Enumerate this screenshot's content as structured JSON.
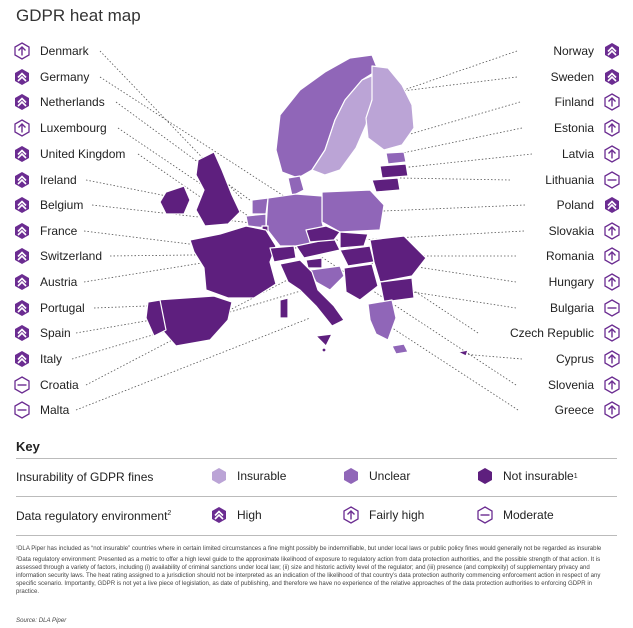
{
  "title": "GDPR heat map",
  "colors": {
    "insurable": "#bba4d6",
    "unclear": "#9066b8",
    "not_insurable": "#5e1f7e",
    "icon": "#6b2c91",
    "leader": "#555555"
  },
  "countries_left": [
    {
      "name": "Denmark",
      "env": "fairly-high"
    },
    {
      "name": "Germany",
      "env": "high"
    },
    {
      "name": "Netherlands",
      "env": "high"
    },
    {
      "name": "Luxembourg",
      "env": "fairly-high"
    },
    {
      "name": "United Kingdom",
      "env": "high"
    },
    {
      "name": "Ireland",
      "env": "high"
    },
    {
      "name": "Belgium",
      "env": "high"
    },
    {
      "name": "France",
      "env": "high"
    },
    {
      "name": "Switzerland",
      "env": "high"
    },
    {
      "name": "Austria",
      "env": "high"
    },
    {
      "name": "Portugal",
      "env": "high"
    },
    {
      "name": "Spain",
      "env": "high"
    },
    {
      "name": "Italy",
      "env": "high"
    },
    {
      "name": "Croatia",
      "env": "moderate"
    },
    {
      "name": "Malta",
      "env": "moderate"
    }
  ],
  "countries_right": [
    {
      "name": "Norway",
      "env": "high"
    },
    {
      "name": "Sweden",
      "env": "high"
    },
    {
      "name": "Finland",
      "env": "fairly-high"
    },
    {
      "name": "Estonia",
      "env": "fairly-high"
    },
    {
      "name": "Latvia",
      "env": "fairly-high"
    },
    {
      "name": "Lithuania",
      "env": "moderate"
    },
    {
      "name": "Poland",
      "env": "high"
    },
    {
      "name": "Slovakia",
      "env": "fairly-high"
    },
    {
      "name": "Romania",
      "env": "fairly-high"
    },
    {
      "name": "Hungary",
      "env": "fairly-high"
    },
    {
      "name": "Bulgaria",
      "env": "moderate"
    },
    {
      "name": "Czech Republic",
      "env": "fairly-high"
    },
    {
      "name": "Cyprus",
      "env": "fairly-high"
    },
    {
      "name": "Slovenia",
      "env": "fairly-high"
    },
    {
      "name": "Greece",
      "env": "fairly-high"
    }
  ],
  "key": {
    "title": "Key",
    "insurability_label": "Insurability of GDPR fines",
    "insurable": "Insurable",
    "unclear": "Unclear",
    "not_insurable": "Not insurable",
    "not_insurable_sup": "1",
    "environment_label": "Data regulatory environment",
    "environment_sup": "2",
    "high": "High",
    "fairly_high": "Fairly high",
    "moderate": "Moderate"
  },
  "footnotes": [
    "¹DLA Piper has included as “not insurable” countries where in certain limited circumstances a fine might possibly be indemnifiable, but under local laws or public policy fines would generally not be regarded as insurable",
    "²Data regulatory environment: Presented as a metric to offer a high level guide to the approximate likelihood of exposure to regulatory action from data protection authorities, and the possible strength of that action.  It is assessed through a variety of factors, including (i) availability of criminal sanctions under local law; (ii) size and historic activity level of the regulator; and (iii) presence (and complexity) of supplementary privacy and information security laws. The heat rating assigned to a jurisdiction should not be interpreted as an indication of the likelihood of that country’s data protection authority commencing enforcement action in respect of any specific scenario. Importantly, GDPR is not yet a live piece of legislation, as date of publishing, and therefore we have no experience of the relative approaches of the data protection authorities to enforcing GDPR in practice."
  ],
  "source": "Source:  DLA Piper"
}
